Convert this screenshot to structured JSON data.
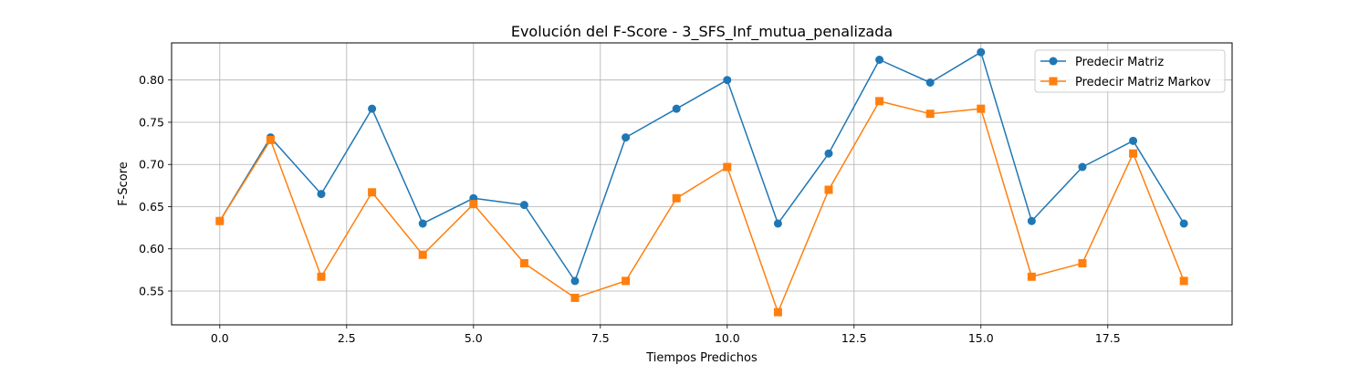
{
  "chart_data": {
    "type": "line",
    "title": "Evolución del F-Score - 3_SFS_Inf_mutua_penalizada",
    "xlabel": "Tiempos Predichos",
    "ylabel": "F-Score",
    "xlim": [
      -0.95,
      19.95
    ],
    "ylim": [
      0.51,
      0.844
    ],
    "xticks": [
      0.0,
      2.5,
      5.0,
      7.5,
      10.0,
      12.5,
      15.0,
      17.5
    ],
    "xtick_labels": [
      "0.0",
      "2.5",
      "5.0",
      "7.5",
      "10.0",
      "12.5",
      "15.0",
      "17.5"
    ],
    "yticks": [
      0.55,
      0.6,
      0.65,
      0.7,
      0.75,
      0.8
    ],
    "ytick_labels": [
      "0.55",
      "0.60",
      "0.65",
      "0.70",
      "0.75",
      "0.80"
    ],
    "grid": true,
    "legend_position": "top-right",
    "x": [
      0,
      1,
      2,
      3,
      4,
      5,
      6,
      7,
      8,
      9,
      10,
      11,
      12,
      13,
      14,
      15,
      16,
      17,
      18,
      19
    ],
    "series": [
      {
        "name": "Predecir Matriz",
        "color": "#1f77b4",
        "marker": "circle",
        "values": [
          0.633,
          0.732,
          0.665,
          0.766,
          0.63,
          0.66,
          0.652,
          0.562,
          0.732,
          0.766,
          0.8,
          0.63,
          0.713,
          0.824,
          0.797,
          0.833,
          0.633,
          0.697,
          0.728,
          0.63
        ]
      },
      {
        "name": "Predecir Matriz Markov",
        "color": "#ff7f0e",
        "marker": "square",
        "values": [
          0.633,
          0.729,
          0.567,
          0.667,
          0.593,
          0.653,
          0.583,
          0.542,
          0.562,
          0.66,
          0.697,
          0.525,
          0.67,
          0.775,
          0.76,
          0.766,
          0.567,
          0.583,
          0.713,
          0.562
        ]
      }
    ]
  }
}
